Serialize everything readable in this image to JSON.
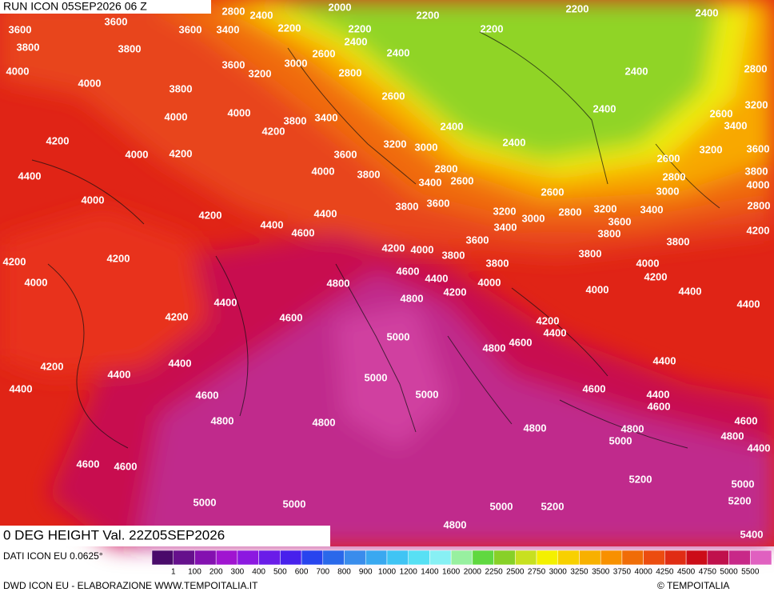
{
  "header": {
    "run": "RUN ICON 05SEP2026 06 Z"
  },
  "map": {
    "title": "0 DEG HEIGHT Val. 22Z05SEP2026",
    "contour_labels": [
      "2800",
      "2400",
      "2000",
      "2200",
      "2200",
      "2400",
      "3600",
      "3600",
      "3600",
      "3400",
      "2200",
      "2200",
      "2400",
      "2200",
      "3800",
      "3800",
      "3600",
      "3200",
      "3000",
      "2600",
      "2400",
      "2800",
      "2400",
      "2800",
      "4000",
      "4000",
      "3800",
      "2600",
      "2400",
      "3200",
      "4000",
      "4000",
      "3800",
      "3400",
      "2400",
      "2600",
      "3400",
      "4200",
      "4200",
      "3200",
      "3000",
      "2400",
      "4000",
      "4200",
      "3600",
      "3200",
      "3600",
      "2800",
      "2600",
      "4400",
      "4000",
      "3800",
      "3400",
      "2600",
      "2800",
      "3800",
      "3000",
      "4000",
      "2600",
      "4000",
      "3800",
      "3600",
      "3200",
      "2800",
      "3200",
      "3400",
      "2800",
      "4200",
      "4400",
      "3000",
      "3600",
      "4400",
      "4600",
      "3400",
      "3800",
      "4200",
      "3600",
      "4200",
      "4000",
      "3800",
      "3800",
      "4200",
      "4200",
      "3800",
      "3800",
      "4000",
      "4600",
      "4200",
      "4000",
      "4800",
      "4400",
      "4000",
      "4000",
      "4200",
      "4400",
      "4800",
      "4400",
      "4400",
      "4200",
      "4600",
      "4200",
      "4400",
      "5000",
      "4600",
      "4800",
      "4400",
      "4400",
      "4200",
      "4400",
      "5000",
      "4400",
      "4600",
      "5000",
      "4600",
      "4400",
      "4600",
      "4800",
      "4800",
      "4600",
      "4800",
      "4800",
      "5000",
      "4800",
      "4400",
      "4600",
      "4600",
      "5200",
      "5000",
      "5000",
      "5000",
      "5000",
      "5200",
      "5200",
      "4800",
      "5400"
    ]
  },
  "legend": {
    "source": "DATI ICON EU 0.0625°",
    "labels": [
      "1",
      "100",
      "200",
      "300",
      "400",
      "500",
      "600",
      "700",
      "800",
      "900",
      "1000",
      "1200",
      "1400",
      "1600",
      "2000",
      "2250",
      "2500",
      "2750",
      "3000",
      "3250",
      "3500",
      "3750",
      "4000",
      "4250",
      "4500",
      "4750",
      "5000",
      "5500"
    ],
    "colors": [
      "#4a0a6a",
      "#66108c",
      "#8410b0",
      "#a014d0",
      "#8c18e0",
      "#6a1ce8",
      "#4820ec",
      "#2844ee",
      "#2a68ea",
      "#3a8cec",
      "#3aa8f0",
      "#40c4f4",
      "#58e0f4",
      "#88f0f4",
      "#98f0a0",
      "#60d840",
      "#88d028",
      "#c8e020",
      "#f4f000",
      "#f8d000",
      "#f8b000",
      "#f89000",
      "#f06c08",
      "#ec4c10",
      "#e02c14",
      "#cc0c18",
      "#c0104c",
      "#c82888",
      "#e060c0"
    ]
  },
  "footer": {
    "credit": "DWD ICON EU - ELABORAZIONE WWW.TEMPOITALIA.IT",
    "brand": "© TEMPOITALIA"
  }
}
